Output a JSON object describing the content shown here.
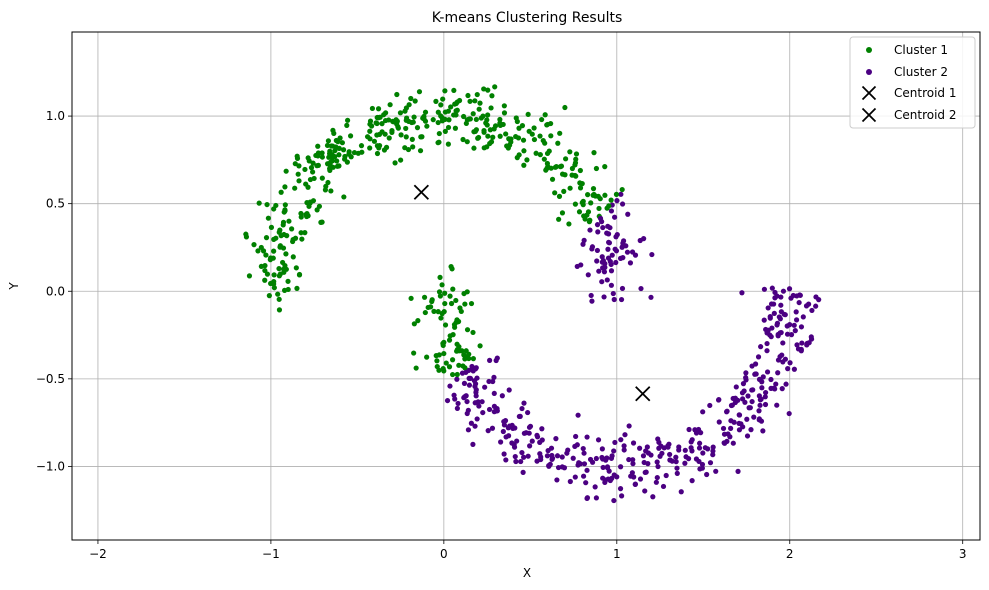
{
  "chart_data": {
    "type": "scatter",
    "title": "K-means Clustering Results",
    "xlabel": "X",
    "ylabel": "Y",
    "xlim": [
      -2.15,
      3.1
    ],
    "ylim": [
      -1.42,
      1.48
    ],
    "xticks": [
      -2,
      -1,
      0,
      1,
      2,
      3
    ],
    "yticks": [
      -1.0,
      -0.5,
      0.0,
      0.5,
      1.0
    ],
    "xtick_labels": [
      "−2",
      "−1",
      "0",
      "1",
      "2",
      "3"
    ],
    "ytick_labels": [
      "−1.0",
      "−0.5",
      "0.0",
      "0.5",
      "1.0"
    ],
    "grid": true,
    "legend_position": "top-right",
    "generator": {
      "n_points": 1000,
      "noise": 0.085,
      "seed": 7
    },
    "series": [
      {
        "name": "Cluster 1",
        "color": "#008000",
        "marker": "circle",
        "description": "Upper moon arc plus the left tip of the lower moon (x < ~0.23)"
      },
      {
        "name": "Cluster 2",
        "color": "#4b0082",
        "marker": "circle",
        "description": "Lower moon arc plus the right tip of the upper moon (x > ~0.85, y < ~0.6)"
      }
    ],
    "centroids": [
      {
        "name": "Centroid 1",
        "x": -0.13,
        "y": 0.565,
        "marker": "x",
        "color": "#000000"
      },
      {
        "name": "Centroid 2",
        "x": 1.15,
        "y": -0.585,
        "marker": "x",
        "color": "#000000"
      }
    ]
  }
}
